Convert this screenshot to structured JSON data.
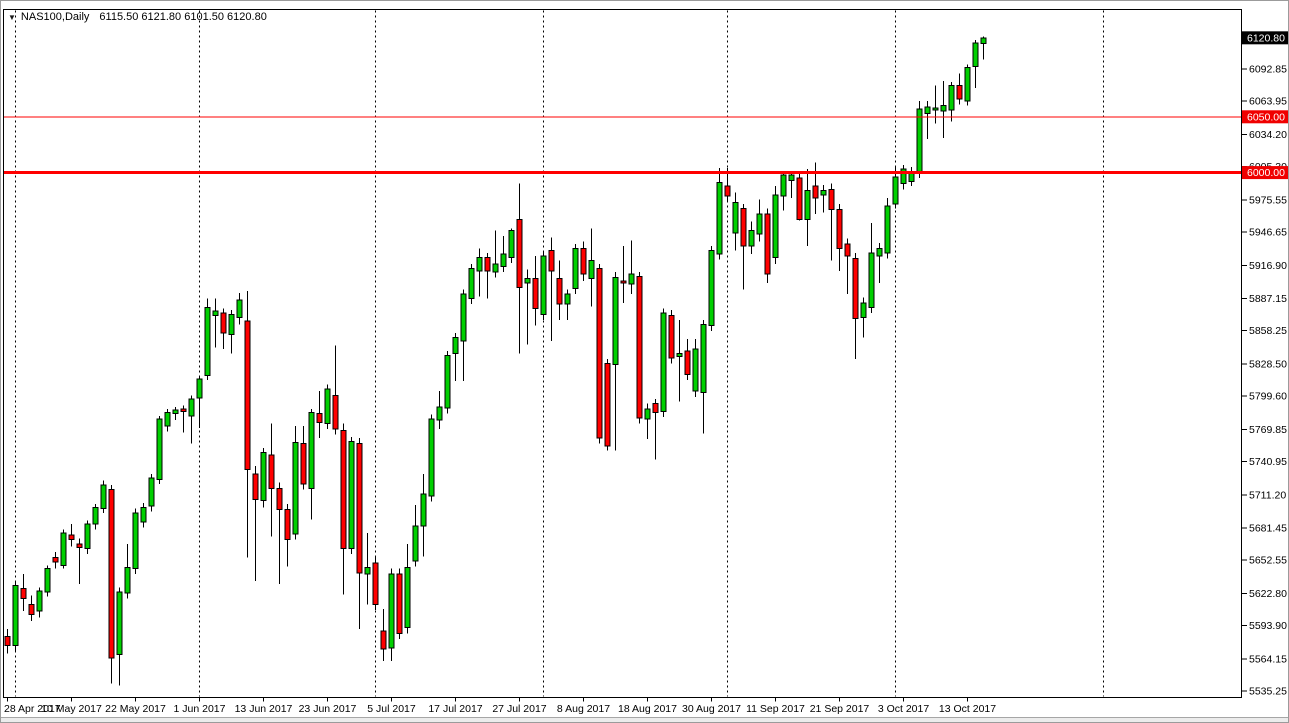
{
  "title": {
    "dropdown_icon": "▼",
    "symbol_period": "NAS100,Daily",
    "ohlc": "6115.50 6121.80 6101.50 6120.80"
  },
  "chart_data": {
    "type": "candlestick",
    "symbol": "NAS100",
    "timeframe": "Daily",
    "colors": {
      "up": "#00cf00",
      "down": "#ff0000",
      "outline": "#000000",
      "wick": "#000000",
      "separator": "#000000",
      "level_line": "#ff0000",
      "level_tag_bg": "#f00000",
      "current_tag_bg": "#000000",
      "tag_text": "#ffffff",
      "axis_text": "#000000"
    },
    "y_axis": {
      "current_price_label": "6120.80",
      "ticks": [
        "6092.85",
        "6063.95",
        "6034.20",
        "6005.30",
        "5975.55",
        "5946.65",
        "5916.90",
        "5887.15",
        "5858.25",
        "5828.50",
        "5799.60",
        "5769.85",
        "5740.95",
        "5711.20",
        "5681.45",
        "5652.55",
        "5622.80",
        "5593.90",
        "5564.15",
        "5535.25"
      ]
    },
    "x_axis": {
      "labels": [
        {
          "i": 0,
          "text": "28 Apr 2017"
        },
        {
          "i": 8,
          "text": "10 May 2017"
        },
        {
          "i": 16,
          "text": "22 May 2017"
        },
        {
          "i": 24,
          "text": "1 Jun 2017"
        },
        {
          "i": 32,
          "text": "13 Jun 2017"
        },
        {
          "i": 40,
          "text": "23 Jun 2017"
        },
        {
          "i": 48,
          "text": "5 Jul 2017"
        },
        {
          "i": 56,
          "text": "17 Jul 2017"
        },
        {
          "i": 64,
          "text": "27 Jul 2017"
        },
        {
          "i": 72,
          "text": "8 Aug 2017"
        },
        {
          "i": 80,
          "text": "18 Aug 2017"
        },
        {
          "i": 88,
          "text": "30 Aug 2017"
        },
        {
          "i": 96,
          "text": "11 Sep 2017"
        },
        {
          "i": 104,
          "text": "21 Sep 2017"
        },
        {
          "i": 112,
          "text": "3 Oct 2017"
        },
        {
          "i": 120,
          "text": "13 Oct 2017"
        }
      ]
    },
    "separator_indices": [
      1,
      24,
      46,
      67,
      90,
      111,
      137
    ],
    "hlines": [
      {
        "price": 6050.0,
        "label": "6050.00",
        "stroke_width": 1
      },
      {
        "price": 6000.0,
        "label": "6000.00",
        "stroke_width": 3
      }
    ],
    "current_price": 6120.8,
    "candles": [
      [
        5584,
        5591,
        5569,
        5576
      ],
      [
        5576,
        5634,
        5570,
        5630
      ],
      [
        5627,
        5640,
        5607,
        5618
      ],
      [
        5613,
        5621,
        5598,
        5604
      ],
      [
        5607,
        5628,
        5601,
        5625
      ],
      [
        5624,
        5648,
        5620,
        5645
      ],
      [
        5655,
        5660,
        5645,
        5651
      ],
      [
        5648,
        5680,
        5645,
        5677
      ],
      [
        5675,
        5685,
        5665,
        5671
      ],
      [
        5667,
        5672,
        5631,
        5664
      ],
      [
        5663,
        5688,
        5658,
        5685
      ],
      [
        5685,
        5703,
        5680,
        5700
      ],
      [
        5699,
        5724,
        5695,
        5720
      ],
      [
        5716,
        5720,
        5542,
        5565
      ],
      [
        5568,
        5628,
        5540,
        5624
      ],
      [
        5623,
        5667,
        5618,
        5646
      ],
      [
        5645,
        5699,
        5640,
        5695
      ],
      [
        5687,
        5704,
        5682,
        5700
      ],
      [
        5701,
        5730,
        5696,
        5726
      ],
      [
        5725,
        5782,
        5721,
        5779
      ],
      [
        5773,
        5788,
        5768,
        5785
      ],
      [
        5784,
        5790,
        5778,
        5787
      ],
      [
        5788,
        5791,
        5767,
        5786
      ],
      [
        5782,
        5800,
        5757,
        5797
      ],
      [
        5798,
        5818,
        5771,
        5815
      ],
      [
        5818,
        5887,
        5814,
        5879
      ],
      [
        5872,
        5887,
        5843,
        5876
      ],
      [
        5874,
        5878,
        5842,
        5856
      ],
      [
        5855,
        5877,
        5838,
        5873
      ],
      [
        5870,
        5892,
        5864,
        5886
      ],
      [
        5867,
        5894,
        5655,
        5734
      ],
      [
        5730,
        5737,
        5634,
        5707
      ],
      [
        5706,
        5753,
        5700,
        5749
      ],
      [
        5747,
        5775,
        5674,
        5717
      ],
      [
        5717,
        5722,
        5631,
        5698
      ],
      [
        5698,
        5703,
        5647,
        5671
      ],
      [
        5676,
        5773,
        5671,
        5758
      ],
      [
        5757,
        5773,
        5716,
        5721
      ],
      [
        5717,
        5788,
        5689,
        5785
      ],
      [
        5784,
        5804,
        5762,
        5776
      ],
      [
        5775,
        5810,
        5770,
        5806
      ],
      [
        5800,
        5845,
        5765,
        5770
      ],
      [
        5769,
        5775,
        5622,
        5663
      ],
      [
        5663,
        5763,
        5658,
        5759
      ],
      [
        5757,
        5762,
        5591,
        5641
      ],
      [
        5640,
        5677,
        5613,
        5646
      ],
      [
        5650,
        5655,
        5608,
        5613
      ],
      [
        5589,
        5609,
        5562,
        5573
      ],
      [
        5574,
        5645,
        5562,
        5640
      ],
      [
        5640,
        5645,
        5582,
        5587
      ],
      [
        5592,
        5667,
        5587,
        5646
      ],
      [
        5652,
        5702,
        5647,
        5683
      ],
      [
        5683,
        5730,
        5656,
        5712
      ],
      [
        5710,
        5783,
        5705,
        5779
      ],
      [
        5778,
        5804,
        5770,
        5790
      ],
      [
        5789,
        5840,
        5784,
        5836
      ],
      [
        5838,
        5856,
        5813,
        5852
      ],
      [
        5849,
        5895,
        5813,
        5891
      ],
      [
        5887,
        5918,
        5882,
        5914
      ],
      [
        5912,
        5932,
        5889,
        5924
      ],
      [
        5924,
        5928,
        5887,
        5912
      ],
      [
        5911,
        5948,
        5906,
        5918
      ],
      [
        5916,
        5943,
        5911,
        5927
      ],
      [
        5924,
        5950,
        5919,
        5948
      ],
      [
        5958,
        5990,
        5838,
        5897
      ],
      [
        5901,
        5913,
        5846,
        5905
      ],
      [
        5905,
        5925,
        5863,
        5878
      ],
      [
        5873,
        5929,
        5868,
        5925
      ],
      [
        5930,
        5942,
        5849,
        5912
      ],
      [
        5905,
        5921,
        5868,
        5882
      ],
      [
        5882,
        5895,
        5868,
        5891
      ],
      [
        5896,
        5936,
        5891,
        5932
      ],
      [
        5932,
        5938,
        5903,
        5909
      ],
      [
        5905,
        5950,
        5880,
        5921
      ],
      [
        5914,
        5918,
        5757,
        5762
      ],
      [
        5829,
        5833,
        5751,
        5755
      ],
      [
        5828,
        5911,
        5751,
        5906
      ],
      [
        5903,
        5934,
        5883,
        5901
      ],
      [
        5900,
        5939,
        5891,
        5909
      ],
      [
        5907,
        5911,
        5775,
        5780
      ],
      [
        5779,
        5793,
        5761,
        5788
      ],
      [
        5793,
        5797,
        5743,
        5785
      ],
      [
        5786,
        5878,
        5781,
        5874
      ],
      [
        5872,
        5877,
        5829,
        5834
      ],
      [
        5835,
        5868,
        5795,
        5838
      ],
      [
        5840,
        5851,
        5814,
        5819
      ],
      [
        5804,
        5851,
        5799,
        5842
      ],
      [
        5803,
        5868,
        5766,
        5864
      ],
      [
        5863,
        5934,
        5858,
        5930
      ],
      [
        5927,
        6004,
        5922,
        5991
      ],
      [
        5988,
        6004,
        5973,
        5979
      ],
      [
        5946,
        5982,
        5930,
        5973
      ],
      [
        5968,
        5972,
        5895,
        5934
      ],
      [
        5934,
        5956,
        5927,
        5948
      ],
      [
        5945,
        5976,
        5938,
        5963
      ],
      [
        5963,
        5968,
        5901,
        5909
      ],
      [
        5924,
        5988,
        5918,
        5980
      ],
      [
        5979,
        6001,
        5966,
        5998
      ],
      [
        5993,
        6001,
        5977,
        5998
      ],
      [
        5995,
        6001,
        5957,
        5958
      ],
      [
        5958,
        6003,
        5934,
        5984
      ],
      [
        5988,
        6009,
        5963,
        5977
      ],
      [
        5980,
        5989,
        5964,
        5984
      ],
      [
        5985,
        5990,
        5921,
        5967
      ],
      [
        5967,
        5972,
        5912,
        5932
      ],
      [
        5936,
        5941,
        5891,
        5925
      ],
      [
        5923,
        5928,
        5833,
        5869
      ],
      [
        5870,
        5888,
        5852,
        5883
      ],
      [
        5879,
        5955,
        5874,
        5928
      ],
      [
        5925,
        5937,
        5901,
        5932
      ],
      [
        5928,
        5977,
        5923,
        5970
      ],
      [
        5972,
        6005,
        5968,
        5996
      ],
      [
        5990,
        6007,
        5985,
        6003
      ],
      [
        5992,
        6005,
        5988,
        5999
      ],
      [
        5999,
        6064,
        5995,
        6057
      ],
      [
        6053,
        6064,
        6030,
        6059
      ],
      [
        6056,
        6078,
        6044,
        6058
      ],
      [
        6055,
        6082,
        6031,
        6060
      ],
      [
        6056,
        6081,
        6046,
        6078
      ],
      [
        6078,
        6089,
        6061,
        6066
      ],
      [
        6064,
        6097,
        6060,
        6094
      ],
      [
        6095,
        6119,
        6076,
        6116
      ],
      [
        6115.5,
        6121.8,
        6101.5,
        6120.8
      ]
    ]
  }
}
